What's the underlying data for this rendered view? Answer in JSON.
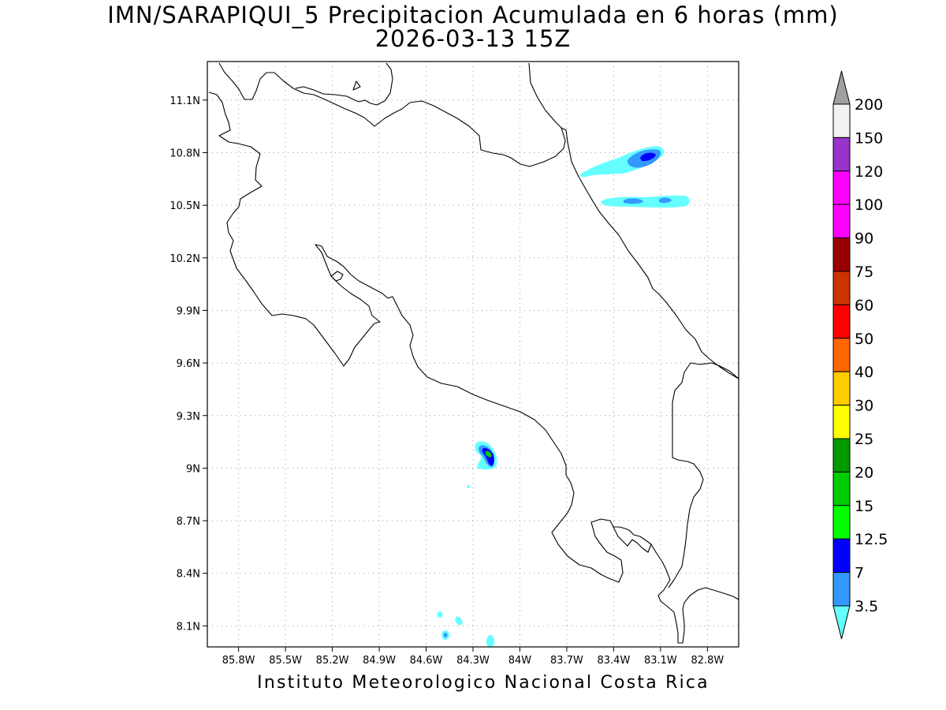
{
  "title": {
    "line1": "IMN/SARAPIQUI_5 Precipitacion Acumulada en 6 horas (mm)",
    "line2": "2026-03-13 15Z"
  },
  "footer": "Instituto Meteorologico Nacional Costa Rica",
  "map": {
    "lon_range": [
      -86.0,
      -82.6
    ],
    "lat_range": [
      7.98,
      11.32
    ],
    "lon_ticks": [
      {
        "value": -85.8,
        "label": "85.8W"
      },
      {
        "value": -85.5,
        "label": "85.5W"
      },
      {
        "value": -85.2,
        "label": "85.2W"
      },
      {
        "value": -84.9,
        "label": "84.9W"
      },
      {
        "value": -84.6,
        "label": "84.6W"
      },
      {
        "value": -84.3,
        "label": "84.3W"
      },
      {
        "value": -84.0,
        "label": "84W"
      },
      {
        "value": -83.7,
        "label": "83.7W"
      },
      {
        "value": -83.4,
        "label": "83.4W"
      },
      {
        "value": -83.1,
        "label": "83.1W"
      },
      {
        "value": -82.8,
        "label": "82.8W"
      }
    ],
    "lat_ticks": [
      {
        "value": 11.1,
        "label": "11.1N"
      },
      {
        "value": 10.8,
        "label": "10.8N"
      },
      {
        "value": 10.5,
        "label": "10.5N"
      },
      {
        "value": 10.2,
        "label": "10.2N"
      },
      {
        "value": 9.9,
        "label": "9.9N"
      },
      {
        "value": 9.6,
        "label": "9.6N"
      },
      {
        "value": 9.3,
        "label": "9.3N"
      },
      {
        "value": 9.0,
        "label": "9N"
      },
      {
        "value": 8.7,
        "label": "8.7N"
      },
      {
        "value": 8.4,
        "label": "8.4N"
      },
      {
        "value": 8.1,
        "label": "8.1N"
      }
    ],
    "grid": true,
    "precipitation_areas": [
      {
        "lon": -83.38,
        "lat": 10.7,
        "min_level": 3.5
      },
      {
        "lon": -83.17,
        "lat": 10.77,
        "min_level": 7
      },
      {
        "lon": -83.12,
        "lat": 10.78,
        "min_level": 12.5
      },
      {
        "lon": -83.0,
        "lat": 10.52,
        "min_level": 3.5
      },
      {
        "lon": -83.22,
        "lat": 10.52,
        "min_level": 7
      },
      {
        "lon": -82.92,
        "lat": 10.53,
        "min_level": 7
      },
      {
        "lon": -84.15,
        "lat": 9.09,
        "min_level": 3.5
      },
      {
        "lon": -84.14,
        "lat": 9.1,
        "min_level": 7
      },
      {
        "lon": -84.13,
        "lat": 9.09,
        "min_level": 12.5
      },
      {
        "lon": -84.13,
        "lat": 9.09,
        "min_level": 15
      },
      {
        "lon": -84.4,
        "lat": 8.07,
        "min_level": 3.5
      },
      {
        "lon": -84.4,
        "lat": 8.07,
        "min_level": 7
      },
      {
        "lon": -84.12,
        "lat": 8.05,
        "min_level": 3.5
      },
      {
        "lon": -84.31,
        "lat": 8.14,
        "min_level": 3.5
      }
    ]
  },
  "colorbar": {
    "levels": [
      {
        "label": "3.5",
        "color": "#66ffff"
      },
      {
        "label": "7",
        "color": "#3399ff"
      },
      {
        "label": "12.5",
        "color": "#0000ff"
      },
      {
        "label": "15",
        "color": "#00ff00"
      },
      {
        "label": "20",
        "color": "#00cc00"
      },
      {
        "label": "25",
        "color": "#009900"
      },
      {
        "label": "30",
        "color": "#ffff00"
      },
      {
        "label": "40",
        "color": "#ffcc00"
      },
      {
        "label": "50",
        "color": "#ff6600"
      },
      {
        "label": "60",
        "color": "#ff0000"
      },
      {
        "label": "75",
        "color": "#cc3300"
      },
      {
        "label": "90",
        "color": "#990000"
      },
      {
        "label": "100",
        "color": "#ff00ff"
      },
      {
        "label": "120",
        "color": "#ff00ff"
      },
      {
        "label": "150",
        "color": "#9933cc"
      },
      {
        "label": "200",
        "color": "#f2f2f2"
      }
    ],
    "over_color": "#a0a0a0",
    "under_color": "#ffffff"
  }
}
